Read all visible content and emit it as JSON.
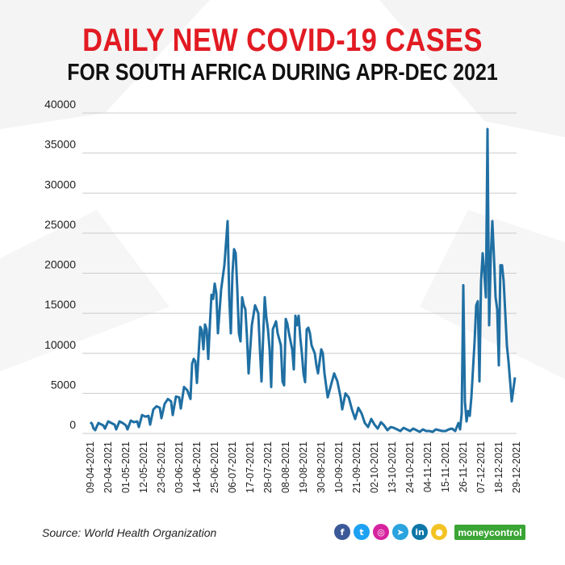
{
  "header": {
    "title": "DAILY NEW COVID-19 CASES",
    "subtitle": "FOR SOUTH AFRICA DURING APR-DEC 2021"
  },
  "footer": {
    "source": "Source: World Health Organization",
    "brand": "moneycontrol",
    "social_icons": [
      "facebook-icon",
      "twitter-icon",
      "instagram-icon",
      "telegram-icon",
      "linkedin-icon",
      "koo-icon"
    ]
  },
  "colors": {
    "title": "#e21b23",
    "line": "#1f6fa3",
    "brand": "#3aa535"
  },
  "chart_data": {
    "type": "line",
    "title": "DAILY NEW COVID-19 CASES FOR SOUTH AFRICA DURING APR-DEC 2021",
    "xlabel": "",
    "ylabel": "",
    "ylim": [
      0,
      40000
    ],
    "yticks": [
      0,
      5000,
      10000,
      15000,
      20000,
      25000,
      30000,
      35000,
      40000
    ],
    "grid": true,
    "x_start": "2021-04-09",
    "x_end": "2021-12-29",
    "xtick_labels": [
      "09-04-2021",
      "20-04-2021",
      "01-05-2021",
      "12-05-2021",
      "23-05-2021",
      "03-06-2021",
      "14-06-2021",
      "25-06-2021",
      "06-07-2021",
      "17-07-2021",
      "28-07-2021",
      "08-08-2021",
      "19-08-2021",
      "30-08-2021",
      "10-09-2021",
      "21-09-2021",
      "02-10-2021",
      "13-10-2021",
      "24-10-2021",
      "04-11-2021",
      "15-11-2021",
      "26-11-2021",
      "07-12-2021",
      "18-12-2021",
      "29-12-2021"
    ],
    "series": [
      {
        "points": [
          [
            "2021-04-09",
            1400
          ],
          [
            "2021-04-10",
            1200
          ],
          [
            "2021-04-11",
            600
          ],
          [
            "2021-04-12",
            400
          ],
          [
            "2021-04-13",
            900
          ],
          [
            "2021-04-14",
            1300
          ],
          [
            "2021-04-15",
            1200
          ],
          [
            "2021-04-17",
            1000
          ],
          [
            "2021-04-18",
            600
          ],
          [
            "2021-04-20",
            1500
          ],
          [
            "2021-04-22",
            1300
          ],
          [
            "2021-04-24",
            1100
          ],
          [
            "2021-04-25",
            500
          ],
          [
            "2021-04-27",
            1500
          ],
          [
            "2021-04-29",
            1300
          ],
          [
            "2021-05-01",
            1000
          ],
          [
            "2021-05-02",
            500
          ],
          [
            "2021-05-04",
            1600
          ],
          [
            "2021-05-06",
            1400
          ],
          [
            "2021-05-08",
            1500
          ],
          [
            "2021-05-09",
            800
          ],
          [
            "2021-05-11",
            2300
          ],
          [
            "2021-05-13",
            2100
          ],
          [
            "2021-05-15",
            2200
          ],
          [
            "2021-05-16",
            1100
          ],
          [
            "2021-05-18",
            3000
          ],
          [
            "2021-05-20",
            3400
          ],
          [
            "2021-05-22",
            3200
          ],
          [
            "2021-05-23",
            1900
          ],
          [
            "2021-05-25",
            3700
          ],
          [
            "2021-05-27",
            4300
          ],
          [
            "2021-05-29",
            4000
          ],
          [
            "2021-05-30",
            2300
          ],
          [
            "2021-06-01",
            4600
          ],
          [
            "2021-06-03",
            4500
          ],
          [
            "2021-06-04",
            3100
          ],
          [
            "2021-06-06",
            5800
          ],
          [
            "2021-06-08",
            5400
          ],
          [
            "2021-06-10",
            4300
          ],
          [
            "2021-06-11",
            8700
          ],
          [
            "2021-06-12",
            9300
          ],
          [
            "2021-06-13",
            9000
          ],
          [
            "2021-06-14",
            6300
          ],
          [
            "2021-06-16",
            13300
          ],
          [
            "2021-06-17",
            12900
          ],
          [
            "2021-06-18",
            10500
          ],
          [
            "2021-06-19",
            13600
          ],
          [
            "2021-06-20",
            13000
          ],
          [
            "2021-06-21",
            9300
          ],
          [
            "2021-06-22",
            13500
          ],
          [
            "2021-06-23",
            17300
          ],
          [
            "2021-06-24",
            16800
          ],
          [
            "2021-06-25",
            18700
          ],
          [
            "2021-06-26",
            17500
          ],
          [
            "2021-06-27",
            12500
          ],
          [
            "2021-06-29",
            18000
          ],
          [
            "2021-07-01",
            21000
          ],
          [
            "2021-07-03",
            26500
          ],
          [
            "2021-07-04",
            17000
          ],
          [
            "2021-07-05",
            12500
          ],
          [
            "2021-07-06",
            20000
          ],
          [
            "2021-07-07",
            23000
          ],
          [
            "2021-07-08",
            22500
          ],
          [
            "2021-07-09",
            18000
          ],
          [
            "2021-07-10",
            12500
          ],
          [
            "2021-07-11",
            11500
          ],
          [
            "2021-07-12",
            17000
          ],
          [
            "2021-07-13",
            16000
          ],
          [
            "2021-07-14",
            15500
          ],
          [
            "2021-07-15",
            12000
          ],
          [
            "2021-07-16",
            7500
          ],
          [
            "2021-07-18",
            13500
          ],
          [
            "2021-07-20",
            16000
          ],
          [
            "2021-07-22",
            15000
          ],
          [
            "2021-07-23",
            10500
          ],
          [
            "2021-07-24",
            6500
          ],
          [
            "2021-07-25",
            12000
          ],
          [
            "2021-07-26",
            17000
          ],
          [
            "2021-07-27",
            14500
          ],
          [
            "2021-07-28",
            13000
          ],
          [
            "2021-07-29",
            10500
          ],
          [
            "2021-07-30",
            5800
          ],
          [
            "2021-07-31",
            13000
          ],
          [
            "2021-08-01",
            13500
          ],
          [
            "2021-08-02",
            14000
          ],
          [
            "2021-08-03",
            12500
          ],
          [
            "2021-08-05",
            11000
          ],
          [
            "2021-08-06",
            6500
          ],
          [
            "2021-08-07",
            6000
          ],
          [
            "2021-08-08",
            14300
          ],
          [
            "2021-08-09",
            13700
          ],
          [
            "2021-08-10",
            12500
          ],
          [
            "2021-08-12",
            10500
          ],
          [
            "2021-08-13",
            8000
          ],
          [
            "2021-08-14",
            14700
          ],
          [
            "2021-08-15",
            13500
          ],
          [
            "2021-08-16",
            14700
          ],
          [
            "2021-08-17",
            12000
          ],
          [
            "2021-08-18",
            10000
          ],
          [
            "2021-08-19",
            7500
          ],
          [
            "2021-08-20",
            6400
          ],
          [
            "2021-08-21",
            13000
          ],
          [
            "2021-08-22",
            13200
          ],
          [
            "2021-08-23",
            12500
          ],
          [
            "2021-08-24",
            11000
          ],
          [
            "2021-08-26",
            10000
          ],
          [
            "2021-08-27",
            8500
          ],
          [
            "2021-08-28",
            7500
          ],
          [
            "2021-08-30",
            10500
          ],
          [
            "2021-08-31",
            10000
          ],
          [
            "2021-09-01",
            7500
          ],
          [
            "2021-09-02",
            6000
          ],
          [
            "2021-09-03",
            4500
          ],
          [
            "2021-09-05",
            6000
          ],
          [
            "2021-09-07",
            7500
          ],
          [
            "2021-09-09",
            6500
          ],
          [
            "2021-09-10",
            5500
          ],
          [
            "2021-09-11",
            4500
          ],
          [
            "2021-09-12",
            3000
          ],
          [
            "2021-09-14",
            5000
          ],
          [
            "2021-09-16",
            4500
          ],
          [
            "2021-09-18",
            3000
          ],
          [
            "2021-09-20",
            1800
          ],
          [
            "2021-09-22",
            3200
          ],
          [
            "2021-09-24",
            2500
          ],
          [
            "2021-09-26",
            1300
          ],
          [
            "2021-09-28",
            800
          ],
          [
            "2021-09-30",
            1800
          ],
          [
            "2021-10-02",
            1100
          ],
          [
            "2021-10-04",
            600
          ],
          [
            "2021-10-06",
            1400
          ],
          [
            "2021-10-08",
            1000
          ],
          [
            "2021-10-10",
            400
          ],
          [
            "2021-10-12",
            800
          ],
          [
            "2021-10-14",
            700
          ],
          [
            "2021-10-16",
            500
          ],
          [
            "2021-10-18",
            300
          ],
          [
            "2021-10-20",
            700
          ],
          [
            "2021-10-22",
            500
          ],
          [
            "2021-10-24",
            300
          ],
          [
            "2021-10-26",
            600
          ],
          [
            "2021-10-28",
            400
          ],
          [
            "2021-10-30",
            200
          ],
          [
            "2021-11-01",
            500
          ],
          [
            "2021-11-03",
            300
          ],
          [
            "2021-11-05",
            300
          ],
          [
            "2021-11-07",
            200
          ],
          [
            "2021-11-09",
            500
          ],
          [
            "2021-11-11",
            400
          ],
          [
            "2021-11-13",
            300
          ],
          [
            "2021-11-15",
            300
          ],
          [
            "2021-11-17",
            500
          ],
          [
            "2021-11-19",
            600
          ],
          [
            "2021-11-21",
            300
          ],
          [
            "2021-11-23",
            1300
          ],
          [
            "2021-11-24",
            500
          ],
          [
            "2021-11-25",
            2500
          ],
          [
            "2021-11-26",
            18500
          ],
          [
            "2021-11-27",
            4000
          ],
          [
            "2021-11-28",
            1500
          ],
          [
            "2021-11-29",
            2800
          ],
          [
            "2021-11-30",
            2200
          ],
          [
            "2021-12-01",
            4500
          ],
          [
            "2021-12-02",
            8000
          ],
          [
            "2021-12-03",
            11500
          ],
          [
            "2021-12-04",
            16000
          ],
          [
            "2021-12-05",
            16500
          ],
          [
            "2021-12-06",
            6500
          ],
          [
            "2021-12-07",
            19000
          ],
          [
            "2021-12-08",
            22500
          ],
          [
            "2021-12-09",
            20000
          ],
          [
            "2021-12-10",
            17000
          ],
          [
            "2021-12-11",
            38000
          ],
          [
            "2021-12-12",
            13500
          ],
          [
            "2021-12-13",
            22000
          ],
          [
            "2021-12-14",
            26500
          ],
          [
            "2021-12-15",
            22000
          ],
          [
            "2021-12-16",
            17000
          ],
          [
            "2021-12-17",
            15500
          ],
          [
            "2021-12-18",
            8500
          ],
          [
            "2021-12-19",
            21000
          ],
          [
            "2021-12-20",
            21000
          ],
          [
            "2021-12-21",
            19000
          ],
          [
            "2021-12-22",
            15000
          ],
          [
            "2021-12-23",
            11000
          ],
          [
            "2021-12-24",
            9000
          ],
          [
            "2021-12-25",
            6500
          ],
          [
            "2021-12-26",
            4000
          ],
          [
            "2021-12-27",
            5500
          ],
          [
            "2021-12-28",
            7000
          ]
        ]
      }
    ]
  }
}
